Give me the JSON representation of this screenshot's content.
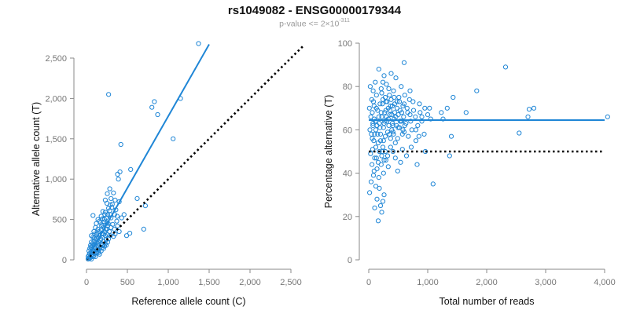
{
  "title": "rs1049082 - ENSG00000179344",
  "subtitle": {
    "prefix": "p-value <= 2×10",
    "exponent": "-311"
  },
  "colors": {
    "points": "#1f86d6",
    "fit_line": "#1f86d6",
    "reference_line": "#000000",
    "axis": "#888888",
    "tick_text": "#777777"
  },
  "chart_data": [
    {
      "type": "scatter",
      "title": "",
      "xlabel": "Reference allele count (C)",
      "ylabel": "Alternative allele count (T)",
      "xlim": [
        0,
        2500
      ],
      "ylim": [
        0,
        2500
      ],
      "xticks": [
        0,
        500,
        1000,
        1500,
        2000,
        2500
      ],
      "yticks": [
        0,
        500,
        1000,
        1500,
        2000,
        2500
      ],
      "xtick_labels": [
        "0",
        "500",
        "1,000",
        "1,500",
        "2,000",
        "2,500"
      ],
      "ytick_labels": [
        "0",
        "500",
        "1,000",
        "1,500",
        "2,000",
        "2,500"
      ],
      "grid": false,
      "fit_line": {
        "x": [
          0,
          1500
        ],
        "y": [
          0,
          2670
        ]
      },
      "reference_line": {
        "x": [
          0,
          2650
        ],
        "y": [
          0,
          2650
        ],
        "style": "dotted"
      },
      "points": [
        [
          1370,
          2680
        ],
        [
          1150,
          2000
        ],
        [
          270,
          2050
        ],
        [
          830,
          1960
        ],
        [
          870,
          1800
        ],
        [
          800,
          1890
        ],
        [
          1060,
          1500
        ],
        [
          420,
          1430
        ],
        [
          540,
          1120
        ],
        [
          410,
          1090
        ],
        [
          380,
          1060
        ],
        [
          390,
          1000
        ],
        [
          620,
          760
        ],
        [
          720,
          670
        ],
        [
          700,
          380
        ],
        [
          490,
          300
        ],
        [
          530,
          330
        ],
        [
          330,
          830
        ],
        [
          350,
          740
        ],
        [
          300,
          760
        ],
        [
          400,
          720
        ],
        [
          290,
          680
        ],
        [
          310,
          650
        ],
        [
          360,
          620
        ],
        [
          250,
          700
        ],
        [
          270,
          640
        ],
        [
          230,
          590
        ],
        [
          200,
          600
        ],
        [
          260,
          560
        ],
        [
          290,
          560
        ],
        [
          300,
          520
        ],
        [
          240,
          520
        ],
        [
          220,
          500
        ],
        [
          180,
          540
        ],
        [
          160,
          480
        ],
        [
          80,
          550
        ],
        [
          140,
          500
        ],
        [
          170,
          460
        ],
        [
          120,
          450
        ],
        [
          200,
          430
        ],
        [
          250,
          460
        ],
        [
          110,
          400
        ],
        [
          140,
          380
        ],
        [
          180,
          370
        ],
        [
          210,
          400
        ],
        [
          260,
          420
        ],
        [
          320,
          440
        ],
        [
          370,
          480
        ],
        [
          90,
          350
        ],
        [
          60,
          300
        ],
        [
          100,
          320
        ],
        [
          130,
          330
        ],
        [
          160,
          300
        ],
        [
          190,
          330
        ],
        [
          220,
          350
        ],
        [
          250,
          380
        ],
        [
          280,
          350
        ],
        [
          300,
          400
        ],
        [
          340,
          380
        ],
        [
          380,
          420
        ],
        [
          400,
          350
        ],
        [
          80,
          280
        ],
        [
          110,
          260
        ],
        [
          140,
          270
        ],
        [
          170,
          240
        ],
        [
          200,
          280
        ],
        [
          230,
          300
        ],
        [
          260,
          310
        ],
        [
          290,
          300
        ],
        [
          350,
          320
        ],
        [
          60,
          220
        ],
        [
          90,
          230
        ],
        [
          120,
          210
        ],
        [
          150,
          220
        ],
        [
          180,
          200
        ],
        [
          210,
          230
        ],
        [
          240,
          250
        ],
        [
          270,
          260
        ],
        [
          330,
          290
        ],
        [
          50,
          180
        ],
        [
          80,
          170
        ],
        [
          110,
          190
        ],
        [
          140,
          170
        ],
        [
          170,
          160
        ],
        [
          200,
          180
        ],
        [
          230,
          200
        ],
        [
          260,
          220
        ],
        [
          40,
          140
        ],
        [
          70,
          130
        ],
        [
          100,
          150
        ],
        [
          130,
          130
        ],
        [
          160,
          140
        ],
        [
          190,
          150
        ],
        [
          220,
          170
        ],
        [
          30,
          110
        ],
        [
          60,
          100
        ],
        [
          90,
          110
        ],
        [
          120,
          100
        ],
        [
          150,
          120
        ],
        [
          180,
          110
        ],
        [
          40,
          80
        ],
        [
          70,
          70
        ],
        [
          100,
          80
        ],
        [
          130,
          90
        ],
        [
          160,
          70
        ],
        [
          30,
          60
        ],
        [
          60,
          50
        ],
        [
          90,
          50
        ],
        [
          20,
          40
        ],
        [
          50,
          30
        ],
        [
          80,
          40
        ],
        [
          110,
          40
        ],
        [
          30,
          20
        ],
        [
          60,
          10
        ],
        [
          20,
          10
        ],
        [
          40,
          20
        ],
        [
          150,
          90
        ],
        [
          210,
          140
        ],
        [
          240,
          180
        ],
        [
          125,
          310
        ],
        [
          185,
          420
        ],
        [
          215,
          470
        ],
        [
          155,
          350
        ],
        [
          95,
          270
        ],
        [
          75,
          200
        ],
        [
          55,
          160
        ],
        [
          145,
          200
        ],
        [
          175,
          260
        ],
        [
          205,
          320
        ],
        [
          235,
          380
        ],
        [
          265,
          450
        ],
        [
          195,
          510
        ],
        [
          225,
          560
        ],
        [
          285,
          610
        ],
        [
          315,
          690
        ],
        [
          345,
          560
        ],
        [
          375,
          540
        ],
        [
          430,
          520
        ],
        [
          460,
          560
        ],
        [
          285,
          880
        ],
        [
          255,
          820
        ],
        [
          230,
          740
        ]
      ]
    },
    {
      "type": "scatter",
      "title": "",
      "xlabel": "Total number of reads",
      "ylabel": "Percentage alternative (T)",
      "xlim": [
        0,
        4000
      ],
      "ylim": [
        0,
        100
      ],
      "xticks": [
        0,
        1000,
        2000,
        3000,
        4000
      ],
      "yticks": [
        0,
        20,
        40,
        60,
        80,
        100
      ],
      "xtick_labels": [
        "0",
        "1,000",
        "2,000",
        "3,000",
        "4,000"
      ],
      "ytick_labels": [
        "0",
        "20",
        "40",
        "60",
        "80",
        "100"
      ],
      "grid": false,
      "fit_line": {
        "x": [
          0,
          4000
        ],
        "y": [
          64.5,
          64.5
        ]
      },
      "reference_line": {
        "x": [
          0,
          4000
        ],
        "y": [
          50,
          50
        ],
        "style": "dotted"
      },
      "points": [
        [
          4050,
          66
        ],
        [
          2700,
          66
        ],
        [
          2720,
          69.5
        ],
        [
          2800,
          70
        ],
        [
          2550,
          58.5
        ],
        [
          2320,
          89
        ],
        [
          1830,
          78
        ],
        [
          1650,
          68
        ],
        [
          1430,
          75
        ],
        [
          1400,
          57
        ],
        [
          1330,
          70
        ],
        [
          1260,
          65
        ],
        [
          1370,
          48
        ],
        [
          1230,
          68
        ],
        [
          1090,
          35
        ],
        [
          1030,
          70
        ],
        [
          1000,
          67
        ],
        [
          1050,
          65
        ],
        [
          960,
          50
        ],
        [
          940,
          58
        ],
        [
          900,
          64
        ],
        [
          870,
          68
        ],
        [
          860,
          72
        ],
        [
          830,
          62
        ],
        [
          800,
          55
        ],
        [
          790,
          66
        ],
        [
          760,
          69
        ],
        [
          730,
          60
        ],
        [
          710,
          64
        ],
        [
          690,
          74
        ],
        [
          670,
          57
        ],
        [
          660,
          68
        ],
        [
          640,
          48
        ],
        [
          630,
          63
        ],
        [
          610,
          76
        ],
        [
          600,
          59
        ],
        [
          590,
          66
        ],
        [
          580,
          71
        ],
        [
          570,
          51
        ],
        [
          560,
          64
        ],
        [
          550,
          80
        ],
        [
          540,
          45
        ],
        [
          530,
          69
        ],
        [
          520,
          61
        ],
        [
          510,
          75
        ],
        [
          500,
          67
        ],
        [
          490,
          56
        ],
        [
          480,
          73
        ],
        [
          470,
          62
        ],
        [
          460,
          84
        ],
        [
          450,
          54
        ],
        [
          440,
          68
        ],
        [
          430,
          65
        ],
        [
          420,
          78
        ],
        [
          410,
          59
        ],
        [
          400,
          71
        ],
        [
          390,
          60
        ],
        [
          380,
          86
        ],
        [
          370,
          52
        ],
        [
          360,
          67
        ],
        [
          350,
          76
        ],
        [
          340,
          62
        ],
        [
          330,
          70
        ],
        [
          320,
          48
        ],
        [
          310,
          64
        ],
        [
          300,
          81
        ],
        [
          290,
          73
        ],
        [
          280,
          57
        ],
        [
          270,
          68
        ],
        [
          260,
          85
        ],
        [
          250,
          61
        ],
        [
          240,
          74
        ],
        [
          230,
          50
        ],
        [
          220,
          66
        ],
        [
          210,
          79
        ],
        [
          200,
          58
        ],
        [
          190,
          72
        ],
        [
          180,
          63
        ],
        [
          170,
          88
        ],
        [
          160,
          54
        ],
        [
          150,
          69
        ],
        [
          140,
          42
        ],
        [
          130,
          76
        ],
        [
          120,
          60
        ],
        [
          110,
          82
        ],
        [
          100,
          47
        ],
        [
          95,
          65
        ],
        [
          90,
          71
        ],
        [
          85,
          55
        ],
        [
          80,
          39
        ],
        [
          75,
          78
        ],
        [
          70,
          62
        ],
        [
          65,
          51
        ],
        [
          60,
          68
        ],
        [
          55,
          44
        ],
        [
          50,
          74
        ],
        [
          45,
          58
        ],
        [
          40,
          36
        ],
        [
          35,
          66
        ],
        [
          30,
          49
        ],
        [
          25,
          80
        ],
        [
          20,
          60
        ],
        [
          15,
          31
        ],
        [
          10,
          70
        ],
        [
          600,
          91
        ],
        [
          700,
          67
        ],
        [
          720,
          52
        ],
        [
          820,
          44
        ],
        [
          180,
          33
        ],
        [
          200,
          25
        ],
        [
          160,
          18
        ],
        [
          220,
          22
        ],
        [
          140,
          28
        ],
        [
          120,
          34
        ],
        [
          240,
          27
        ],
        [
          260,
          30
        ],
        [
          100,
          24
        ],
        [
          90,
          41
        ],
        [
          130,
          47
        ],
        [
          170,
          38
        ],
        [
          210,
          44
        ],
        [
          250,
          40
        ],
        [
          290,
          46
        ],
        [
          330,
          43
        ],
        [
          370,
          56
        ],
        [
          410,
          50
        ],
        [
          450,
          47
        ],
        [
          490,
          41
        ],
        [
          530,
          64
        ],
        [
          570,
          58
        ],
        [
          610,
          62
        ],
        [
          650,
          70
        ],
        [
          700,
          78
        ],
        [
          750,
          73
        ],
        [
          800,
          60
        ],
        [
          850,
          57
        ],
        [
          900,
          66
        ],
        [
          950,
          70
        ],
        [
          220,
          77
        ],
        [
          240,
          82
        ],
        [
          260,
          63
        ],
        [
          280,
          75
        ],
        [
          300,
          66
        ],
        [
          320,
          59
        ],
        [
          340,
          79
        ],
        [
          360,
          69
        ],
        [
          380,
          74
        ],
        [
          400,
          63
        ],
        [
          420,
          58
        ],
        [
          440,
          72
        ],
        [
          460,
          66
        ],
        [
          480,
          70
        ],
        [
          500,
          61
        ],
        [
          520,
          73
        ],
        [
          540,
          64
        ],
        [
          560,
          68
        ],
        [
          580,
          60
        ],
        [
          600,
          72
        ],
        [
          110,
          64
        ],
        [
          130,
          70
        ],
        [
          150,
          58
        ],
        [
          170,
          66
        ],
        [
          190,
          61
        ],
        [
          210,
          68
        ],
        [
          230,
          72
        ],
        [
          250,
          55
        ],
        [
          270,
          64
        ],
        [
          290,
          69
        ],
        [
          310,
          73
        ],
        [
          330,
          65
        ],
        [
          350,
          58
        ],
        [
          370,
          71
        ],
        [
          390,
          67
        ],
        [
          410,
          62
        ],
        [
          430,
          75
        ],
        [
          60,
          56
        ],
        [
          70,
          63
        ],
        [
          80,
          73
        ],
        [
          100,
          58
        ],
        [
          120,
          52
        ],
        [
          140,
          62
        ],
        [
          160,
          45
        ],
        [
          180,
          50
        ],
        [
          200,
          55
        ],
        [
          220,
          48
        ],
        [
          240,
          52
        ],
        [
          260,
          46
        ],
        [
          280,
          50
        ]
      ]
    }
  ]
}
